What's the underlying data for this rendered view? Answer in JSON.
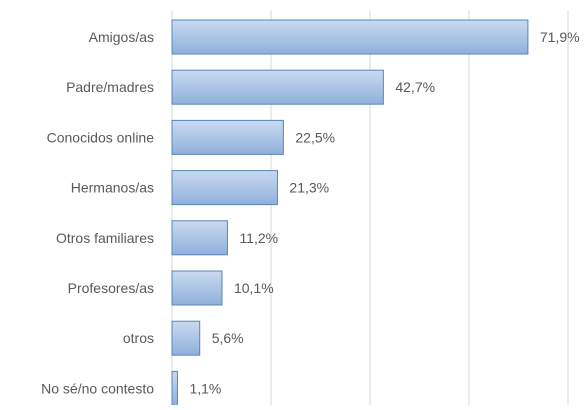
{
  "colors": {
    "bar_fill_top": "#c9daf0",
    "bar_fill_bottom": "#8fb0dc",
    "bar_stroke": "#5b84b9",
    "gridline": "#d9d9d9",
    "text": "#595959"
  },
  "chart_data": {
    "type": "bar",
    "orientation": "horizontal",
    "title": "",
    "xlabel": "",
    "ylabel": "",
    "xlim": [
      0,
      80
    ],
    "grid": true,
    "legend": "none",
    "categories": [
      "Amigos/as",
      "Padre/madres",
      "Conocidos online",
      "Hermanos/as",
      "Otros familiares",
      "Profesores/as",
      "otros",
      "No sé/no contesto"
    ],
    "values": [
      71.9,
      42.7,
      22.5,
      21.3,
      11.2,
      10.1,
      5.6,
      1.1
    ],
    "value_labels": [
      "71,9%",
      "42,7%",
      "22,5%",
      "21,3%",
      "11,2%",
      "10,1%",
      "5,6%",
      "1,1%"
    ]
  }
}
